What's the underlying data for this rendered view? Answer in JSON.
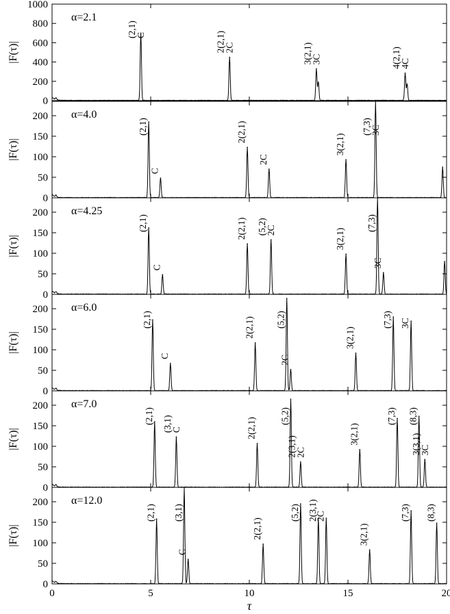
{
  "chart_data": [
    {
      "type": "line",
      "panel_label": "α=2.1",
      "ylabel": "|F(τ)|",
      "xlim": [
        0,
        20
      ],
      "ylim": [
        0,
        1000
      ],
      "yticks": [
        0,
        200,
        400,
        600,
        800,
        1000
      ],
      "xticks": [
        0,
        5,
        10,
        15,
        20
      ],
      "peaks": [
        {
          "x": 4.5,
          "y": 700,
          "labels": [
            "(2,1)",
            "C"
          ]
        },
        {
          "x": 9.0,
          "y": 450,
          "labels": [
            "2(2,1)",
            "2C"
          ]
        },
        {
          "x": 13.4,
          "y": 330,
          "labels": [
            "3(2,1)",
            "3C"
          ]
        },
        {
          "x": 13.5,
          "y": 190,
          "labels": []
        },
        {
          "x": 17.9,
          "y": 285,
          "labels": [
            "4(2,1)",
            "4C"
          ]
        },
        {
          "x": 18.0,
          "y": 170,
          "labels": []
        }
      ]
    },
    {
      "type": "line",
      "panel_label": "α=4.0",
      "ylabel": "|F(τ)|",
      "xlim": [
        0,
        20
      ],
      "ylim": [
        0,
        235
      ],
      "yticks": [
        0,
        50,
        100,
        150,
        200
      ],
      "xticks": [
        0,
        5,
        10,
        15,
        20
      ],
      "peaks": [
        {
          "x": 4.9,
          "y": 185,
          "labels": [
            "(2,1)"
          ]
        },
        {
          "x": 5.5,
          "y": 48,
          "labels": [
            "C"
          ]
        },
        {
          "x": 9.9,
          "y": 123,
          "labels": [
            "2(2,1)"
          ]
        },
        {
          "x": 11.0,
          "y": 70,
          "labels": [
            "2C"
          ]
        },
        {
          "x": 14.9,
          "y": 93,
          "labels": [
            "3(2,1)"
          ]
        },
        {
          "x": 16.4,
          "y": 235,
          "labels": [
            "(7,3)",
            "3C"
          ]
        },
        {
          "x": 19.8,
          "y": 75,
          "labels": []
        }
      ]
    },
    {
      "type": "line",
      "panel_label": "α=4.25",
      "ylabel": "|F(τ)|",
      "xlim": [
        0,
        20
      ],
      "ylim": [
        0,
        235
      ],
      "yticks": [
        0,
        50,
        100,
        150,
        200
      ],
      "xticks": [
        0,
        5,
        10,
        15,
        20
      ],
      "peaks": [
        {
          "x": 4.9,
          "y": 162,
          "labels": [
            "(2,1)"
          ]
        },
        {
          "x": 5.6,
          "y": 48,
          "labels": [
            "C"
          ]
        },
        {
          "x": 9.9,
          "y": 123,
          "labels": [
            "2(2,1)"
          ]
        },
        {
          "x": 11.1,
          "y": 133,
          "labels": [
            "(5,2)",
            "2C"
          ]
        },
        {
          "x": 14.9,
          "y": 98,
          "labels": [
            "3(2,1)"
          ]
        },
        {
          "x": 16.5,
          "y": 235,
          "labels": [
            "(7,3)"
          ]
        },
        {
          "x": 16.8,
          "y": 53,
          "labels": [
            "3C"
          ]
        },
        {
          "x": 19.9,
          "y": 80,
          "labels": []
        }
      ]
    },
    {
      "type": "line",
      "panel_label": "α=6.0",
      "ylabel": "|F(τ)|",
      "xlim": [
        0,
        20
      ],
      "ylim": [
        0,
        235
      ],
      "yticks": [
        0,
        50,
        100,
        150,
        200
      ],
      "xticks": [
        0,
        5,
        10,
        15,
        20
      ],
      "peaks": [
        {
          "x": 5.1,
          "y": 173,
          "labels": [
            "(2,1)"
          ]
        },
        {
          "x": 6.0,
          "y": 67,
          "labels": [
            "C"
          ]
        },
        {
          "x": 10.3,
          "y": 117,
          "labels": [
            "2(2,1)"
          ]
        },
        {
          "x": 11.9,
          "y": 225,
          "labels": [
            "(5,2)"
          ]
        },
        {
          "x": 12.1,
          "y": 52,
          "labels": [
            "2C"
          ]
        },
        {
          "x": 15.4,
          "y": 92,
          "labels": [
            "3(2,1)"
          ]
        },
        {
          "x": 17.3,
          "y": 180,
          "labels": [
            "(7,3)"
          ]
        },
        {
          "x": 18.2,
          "y": 170,
          "labels": [
            "3C"
          ]
        }
      ]
    },
    {
      "type": "line",
      "panel_label": "α=7.0",
      "ylabel": "|F(τ)|",
      "xlim": [
        0,
        20
      ],
      "ylim": [
        0,
        235
      ],
      "yticks": [
        0,
        50,
        100,
        150,
        200
      ],
      "xticks": [
        0,
        5,
        10,
        15,
        20
      ],
      "peaks": [
        {
          "x": 5.2,
          "y": 160,
          "labels": [
            "(2,1)"
          ]
        },
        {
          "x": 6.3,
          "y": 123,
          "labels": [
            "(3,1)",
            "C"
          ]
        },
        {
          "x": 10.4,
          "y": 107,
          "labels": [
            "2(2,1)"
          ]
        },
        {
          "x": 12.1,
          "y": 215,
          "labels": [
            "(5,2)"
          ]
        },
        {
          "x": 12.6,
          "y": 62,
          "labels": [
            "2(3,1)",
            "2C"
          ]
        },
        {
          "x": 15.6,
          "y": 92,
          "labels": [
            "3(2,1)"
          ]
        },
        {
          "x": 17.5,
          "y": 168,
          "labels": [
            "(7,3)"
          ]
        },
        {
          "x": 18.6,
          "y": 173,
          "labels": [
            "(8,3)"
          ]
        },
        {
          "x": 18.9,
          "y": 68,
          "labels": [
            "3(3,1)",
            "3C"
          ]
        }
      ]
    },
    {
      "type": "line",
      "panel_label": "α=12.0",
      "ylabel": "|F(τ)|",
      "xlabel": "τ",
      "xlim": [
        0,
        20
      ],
      "ylim": [
        0,
        235
      ],
      "yticks": [
        0,
        50,
        100,
        150,
        200
      ],
      "xticks": [
        0,
        5,
        10,
        15,
        20
      ],
      "peaks": [
        {
          "x": 5.3,
          "y": 158,
          "labels": [
            "(2,1)"
          ]
        },
        {
          "x": 6.7,
          "y": 235,
          "labels": [
            "(3,1)"
          ]
        },
        {
          "x": 6.9,
          "y": 60,
          "labels": [
            "C"
          ]
        },
        {
          "x": 10.7,
          "y": 97,
          "labels": [
            "2(2,1)"
          ]
        },
        {
          "x": 12.6,
          "y": 195,
          "labels": [
            "(5,2)"
          ]
        },
        {
          "x": 13.5,
          "y": 160,
          "labels": [
            "2(3,1)"
          ]
        },
        {
          "x": 13.9,
          "y": 160,
          "labels": [
            "2C"
          ]
        },
        {
          "x": 16.1,
          "y": 83,
          "labels": [
            "3(2,1)"
          ]
        },
        {
          "x": 18.2,
          "y": 178,
          "labels": [
            "(7,3)"
          ]
        },
        {
          "x": 19.5,
          "y": 148,
          "labels": [
            "(8,3)"
          ]
        }
      ]
    }
  ]
}
